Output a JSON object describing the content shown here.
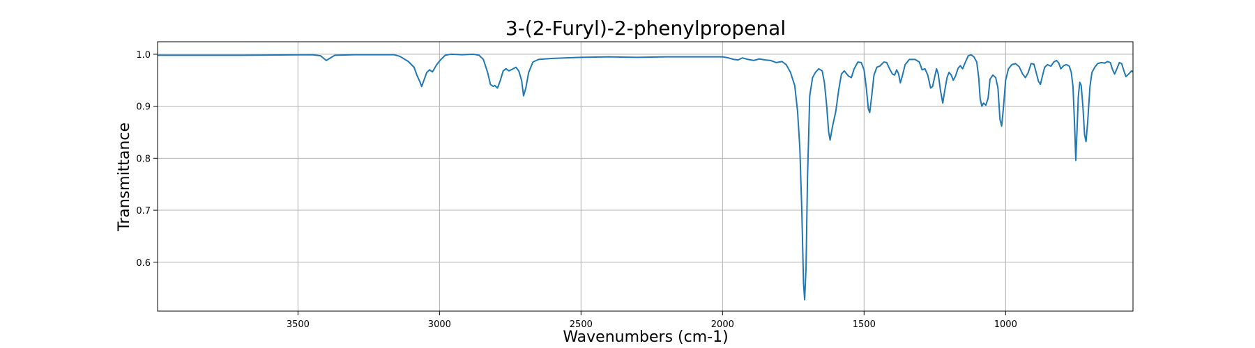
{
  "chart_data": {
    "type": "line",
    "title": "3-(2-Furyl)-2-phenylpropenal",
    "xlabel": "Wavenumbers (cm-1)",
    "ylabel": "Transmittance",
    "x_reversed": true,
    "xlim": [
      3996,
      550
    ],
    "ylim": [
      0.506,
      1.024
    ],
    "xticks": [
      3500,
      3000,
      2500,
      2000,
      1500,
      1000
    ],
    "yticks": [
      0.6,
      0.7,
      0.8,
      0.9,
      1.0
    ],
    "grid": true,
    "series_color": "#1f77b4",
    "series": [
      {
        "points": [
          [
            3996,
            0.998
          ],
          [
            3700,
            0.998
          ],
          [
            3450,
            0.999
          ],
          [
            3420,
            0.997
          ],
          [
            3400,
            0.988
          ],
          [
            3385,
            0.993
          ],
          [
            3370,
            0.998
          ],
          [
            3300,
            0.999
          ],
          [
            3200,
            0.999
          ],
          [
            3160,
            0.999
          ],
          [
            3140,
            0.996
          ],
          [
            3110,
            0.986
          ],
          [
            3090,
            0.975
          ],
          [
            3080,
            0.96
          ],
          [
            3070,
            0.948
          ],
          [
            3063,
            0.938
          ],
          [
            3055,
            0.95
          ],
          [
            3045,
            0.965
          ],
          [
            3035,
            0.97
          ],
          [
            3025,
            0.966
          ],
          [
            3010,
            0.98
          ],
          [
            2995,
            0.99
          ],
          [
            2980,
            0.998
          ],
          [
            2960,
            1.0
          ],
          [
            2920,
            0.999
          ],
          [
            2880,
            1.0
          ],
          [
            2860,
            0.998
          ],
          [
            2845,
            0.99
          ],
          [
            2830,
            0.965
          ],
          [
            2820,
            0.942
          ],
          [
            2810,
            0.938
          ],
          [
            2805,
            0.94
          ],
          [
            2795,
            0.935
          ],
          [
            2785,
            0.95
          ],
          [
            2775,
            0.968
          ],
          [
            2765,
            0.972
          ],
          [
            2755,
            0.968
          ],
          [
            2740,
            0.972
          ],
          [
            2730,
            0.975
          ],
          [
            2720,
            0.968
          ],
          [
            2710,
            0.95
          ],
          [
            2703,
            0.92
          ],
          [
            2695,
            0.935
          ],
          [
            2685,
            0.965
          ],
          [
            2670,
            0.985
          ],
          [
            2650,
            0.99
          ],
          [
            2600,
            0.992
          ],
          [
            2500,
            0.994
          ],
          [
            2400,
            0.995
          ],
          [
            2300,
            0.994
          ],
          [
            2200,
            0.995
          ],
          [
            2100,
            0.995
          ],
          [
            2000,
            0.995
          ],
          [
            1980,
            0.993
          ],
          [
            1960,
            0.99
          ],
          [
            1945,
            0.989
          ],
          [
            1930,
            0.993
          ],
          [
            1910,
            0.99
          ],
          [
            1890,
            0.988
          ],
          [
            1870,
            0.991
          ],
          [
            1850,
            0.989
          ],
          [
            1830,
            0.988
          ],
          [
            1810,
            0.984
          ],
          [
            1790,
            0.986
          ],
          [
            1775,
            0.98
          ],
          [
            1760,
            0.965
          ],
          [
            1745,
            0.94
          ],
          [
            1735,
            0.89
          ],
          [
            1727,
            0.82
          ],
          [
            1720,
            0.7
          ],
          [
            1714,
            0.56
          ],
          [
            1710,
            0.528
          ],
          [
            1705,
            0.59
          ],
          [
            1700,
            0.76
          ],
          [
            1692,
            0.92
          ],
          [
            1682,
            0.955
          ],
          [
            1672,
            0.965
          ],
          [
            1660,
            0.972
          ],
          [
            1648,
            0.968
          ],
          [
            1640,
            0.945
          ],
          [
            1632,
            0.9
          ],
          [
            1625,
            0.85
          ],
          [
            1620,
            0.835
          ],
          [
            1612,
            0.86
          ],
          [
            1600,
            0.89
          ],
          [
            1590,
            0.93
          ],
          [
            1580,
            0.962
          ],
          [
            1570,
            0.968
          ],
          [
            1555,
            0.958
          ],
          [
            1545,
            0.955
          ],
          [
            1535,
            0.972
          ],
          [
            1522,
            0.985
          ],
          [
            1510,
            0.984
          ],
          [
            1500,
            0.97
          ],
          [
            1492,
            0.935
          ],
          [
            1485,
            0.895
          ],
          [
            1480,
            0.888
          ],
          [
            1473,
            0.92
          ],
          [
            1465,
            0.96
          ],
          [
            1455,
            0.975
          ],
          [
            1445,
            0.977
          ],
          [
            1430,
            0.985
          ],
          [
            1420,
            0.984
          ],
          [
            1410,
            0.972
          ],
          [
            1400,
            0.962
          ],
          [
            1392,
            0.96
          ],
          [
            1385,
            0.97
          ],
          [
            1378,
            0.962
          ],
          [
            1372,
            0.945
          ],
          [
            1365,
            0.958
          ],
          [
            1355,
            0.98
          ],
          [
            1340,
            0.99
          ],
          [
            1320,
            0.99
          ],
          [
            1305,
            0.985
          ],
          [
            1295,
            0.97
          ],
          [
            1285,
            0.972
          ],
          [
            1275,
            0.96
          ],
          [
            1265,
            0.935
          ],
          [
            1258,
            0.938
          ],
          [
            1250,
            0.958
          ],
          [
            1244,
            0.972
          ],
          [
            1238,
            0.962
          ],
          [
            1230,
            0.93
          ],
          [
            1222,
            0.906
          ],
          [
            1215,
            0.93
          ],
          [
            1207,
            0.955
          ],
          [
            1200,
            0.965
          ],
          [
            1192,
            0.96
          ],
          [
            1185,
            0.95
          ],
          [
            1177,
            0.958
          ],
          [
            1168,
            0.973
          ],
          [
            1160,
            0.978
          ],
          [
            1152,
            0.972
          ],
          [
            1142,
            0.985
          ],
          [
            1132,
            0.997
          ],
          [
            1122,
            0.999
          ],
          [
            1112,
            0.995
          ],
          [
            1102,
            0.985
          ],
          [
            1095,
            0.955
          ],
          [
            1090,
            0.915
          ],
          [
            1084,
            0.9
          ],
          [
            1078,
            0.906
          ],
          [
            1070,
            0.902
          ],
          [
            1062,
            0.915
          ],
          [
            1055,
            0.952
          ],
          [
            1045,
            0.96
          ],
          [
            1035,
            0.955
          ],
          [
            1027,
            0.935
          ],
          [
            1020,
            0.875
          ],
          [
            1014,
            0.862
          ],
          [
            1008,
            0.895
          ],
          [
            1000,
            0.95
          ],
          [
            990,
            0.972
          ],
          [
            978,
            0.98
          ],
          [
            965,
            0.982
          ],
          [
            952,
            0.976
          ],
          [
            940,
            0.962
          ],
          [
            930,
            0.955
          ],
          [
            920,
            0.965
          ],
          [
            910,
            0.982
          ],
          [
            900,
            0.981
          ],
          [
            892,
            0.965
          ],
          [
            884,
            0.948
          ],
          [
            877,
            0.942
          ],
          [
            870,
            0.958
          ],
          [
            862,
            0.975
          ],
          [
            852,
            0.98
          ],
          [
            840,
            0.977
          ],
          [
            830,
            0.985
          ],
          [
            820,
            0.988
          ],
          [
            812,
            0.983
          ],
          [
            805,
            0.972
          ],
          [
            795,
            0.978
          ],
          [
            785,
            0.98
          ],
          [
            775,
            0.977
          ],
          [
            768,
            0.965
          ],
          [
            762,
            0.938
          ],
          [
            756,
            0.86
          ],
          [
            752,
            0.796
          ],
          [
            748,
            0.85
          ],
          [
            743,
            0.92
          ],
          [
            738,
            0.946
          ],
          [
            733,
            0.94
          ],
          [
            727,
            0.9
          ],
          [
            721,
            0.845
          ],
          [
            716,
            0.832
          ],
          [
            710,
            0.87
          ],
          [
            702,
            0.938
          ],
          [
            695,
            0.965
          ],
          [
            685,
            0.975
          ],
          [
            675,
            0.982
          ],
          [
            662,
            0.984
          ],
          [
            650,
            0.983
          ],
          [
            640,
            0.986
          ],
          [
            630,
            0.984
          ],
          [
            622,
            0.97
          ],
          [
            615,
            0.962
          ],
          [
            607,
            0.972
          ],
          [
            598,
            0.984
          ],
          [
            590,
            0.982
          ],
          [
            582,
            0.968
          ],
          [
            575,
            0.957
          ],
          [
            565,
            0.962
          ],
          [
            555,
            0.968
          ],
          [
            550,
            0.966
          ]
        ]
      }
    ]
  }
}
